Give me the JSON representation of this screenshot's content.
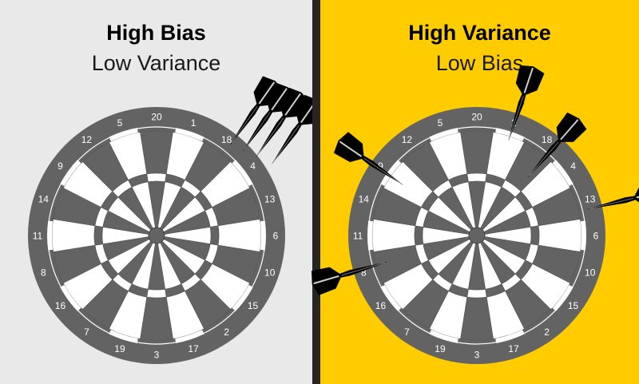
{
  "panels": [
    {
      "title": "High Bias",
      "subtitle": "Low Variance",
      "background": "#e9e9e9",
      "darts": [
        {
          "x": 0.7,
          "y": -0.86
        },
        {
          "x": 0.82,
          "y": -0.8
        },
        {
          "x": 0.95,
          "y": -0.75
        },
        {
          "x": 1.1,
          "y": -0.68
        }
      ]
    },
    {
      "title": "High Variance",
      "subtitle": "Low Bias",
      "background": "#ffcc00",
      "darts": [
        {
          "x": -0.7,
          "y": -0.48
        },
        {
          "x": 0.3,
          "y": -0.9
        },
        {
          "x": 0.48,
          "y": -0.55
        },
        {
          "x": -0.85,
          "y": 0.25
        },
        {
          "x": 1.05,
          "y": -0.25
        }
      ]
    }
  ],
  "board": {
    "numbers": [
      "20",
      "1",
      "18",
      "4",
      "13",
      "6",
      "10",
      "15",
      "2",
      "17",
      "3",
      "19",
      "7",
      "16",
      "8",
      "11",
      "14",
      "9",
      "12",
      "5"
    ],
    "colors": {
      "outer": "#636363",
      "dark": "#636363",
      "light": "#ffffff",
      "number_text": "#ffffff",
      "dart": "#000000"
    }
  }
}
